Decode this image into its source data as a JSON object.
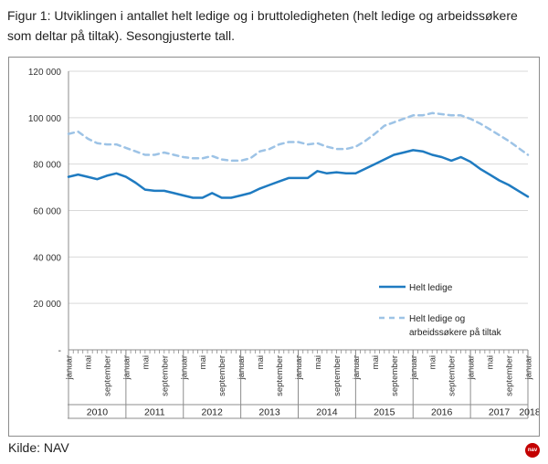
{
  "caption": "Figur 1: Utviklingen i antallet helt ledige og i bruttoledigheten (helt ledige og arbeidssøkere som deltar på tiltak). Sesongjusterte tall.",
  "source": "Kilde: NAV",
  "logo_text": "nav",
  "colors": {
    "solid": "#1f7bc1",
    "dashed": "#9dc3e6",
    "axis": "#8c8c8c",
    "grid": "#d9d9d9"
  },
  "chart_data": {
    "type": "line",
    "title": "",
    "xlabel": "",
    "ylabel": "",
    "ylim": [
      0,
      120000
    ],
    "y_ticks": [
      {
        "value": 120000,
        "label": "120 000"
      },
      {
        "value": 100000,
        "label": "100 000"
      },
      {
        "value": 80000,
        "label": "80 000"
      },
      {
        "value": 60000,
        "label": "60 000"
      },
      {
        "value": 40000,
        "label": "40 000"
      },
      {
        "value": 20000,
        "label": "20 000"
      },
      {
        "value": 0,
        "label": "-"
      }
    ],
    "grid": true,
    "legend_position": "lower-right",
    "x_range": [
      "2010-01",
      "2018-01"
    ],
    "month_labels": [
      "januar",
      "mai",
      "september"
    ],
    "years": [
      "2010",
      "2011",
      "2012",
      "2013",
      "2014",
      "2015",
      "2016",
      "2017",
      "2018"
    ],
    "series": [
      {
        "name": "Helt ledige",
        "style": "solid",
        "points": [
          [
            "2010-01",
            74500
          ],
          [
            "2010-03",
            75500
          ],
          [
            "2010-05",
            74500
          ],
          [
            "2010-07",
            73500
          ],
          [
            "2010-09",
            75000
          ],
          [
            "2010-11",
            76000
          ],
          [
            "2011-01",
            74500
          ],
          [
            "2011-03",
            72000
          ],
          [
            "2011-05",
            69000
          ],
          [
            "2011-07",
            68500
          ],
          [
            "2011-09",
            68500
          ],
          [
            "2011-11",
            67500
          ],
          [
            "2012-01",
            66500
          ],
          [
            "2012-03",
            65500
          ],
          [
            "2012-05",
            65500
          ],
          [
            "2012-07",
            67500
          ],
          [
            "2012-09",
            65500
          ],
          [
            "2012-11",
            65500
          ],
          [
            "2013-01",
            66500
          ],
          [
            "2013-03",
            67500
          ],
          [
            "2013-05",
            69500
          ],
          [
            "2013-07",
            71000
          ],
          [
            "2013-09",
            72500
          ],
          [
            "2013-11",
            74000
          ],
          [
            "2014-01",
            74000
          ],
          [
            "2014-03",
            74000
          ],
          [
            "2014-05",
            77000
          ],
          [
            "2014-07",
            76000
          ],
          [
            "2014-09",
            76500
          ],
          [
            "2014-11",
            76000
          ],
          [
            "2015-01",
            76000
          ],
          [
            "2015-03",
            78000
          ],
          [
            "2015-05",
            80000
          ],
          [
            "2015-07",
            82000
          ],
          [
            "2015-09",
            84000
          ],
          [
            "2015-11",
            85000
          ],
          [
            "2016-01",
            86000
          ],
          [
            "2016-03",
            85500
          ],
          [
            "2016-05",
            84000
          ],
          [
            "2016-07",
            83000
          ],
          [
            "2016-09",
            81500
          ],
          [
            "2016-11",
            83000
          ],
          [
            "2017-01",
            81000
          ],
          [
            "2017-03",
            78000
          ],
          [
            "2017-05",
            75500
          ],
          [
            "2017-07",
            73000
          ],
          [
            "2017-09",
            71000
          ],
          [
            "2017-11",
            68500
          ],
          [
            "2018-01",
            66000
          ]
        ]
      },
      {
        "name": "Helt ledige og arbeidssøkere på tiltak",
        "style": "dashed",
        "points": [
          [
            "2010-01",
            93000
          ],
          [
            "2010-03",
            94000
          ],
          [
            "2010-05",
            91000
          ],
          [
            "2010-07",
            89000
          ],
          [
            "2010-09",
            88500
          ],
          [
            "2010-11",
            88500
          ],
          [
            "2011-01",
            87000
          ],
          [
            "2011-03",
            85500
          ],
          [
            "2011-05",
            84000
          ],
          [
            "2011-07",
            84000
          ],
          [
            "2011-09",
            85000
          ],
          [
            "2011-11",
            84000
          ],
          [
            "2012-01",
            83000
          ],
          [
            "2012-03",
            82500
          ],
          [
            "2012-05",
            82500
          ],
          [
            "2012-07",
            83500
          ],
          [
            "2012-09",
            82000
          ],
          [
            "2012-11",
            81500
          ],
          [
            "2013-01",
            81500
          ],
          [
            "2013-03",
            82500
          ],
          [
            "2013-05",
            85500
          ],
          [
            "2013-07",
            86500
          ],
          [
            "2013-09",
            88500
          ],
          [
            "2013-11",
            89500
          ],
          [
            "2014-01",
            89500
          ],
          [
            "2014-03",
            88500
          ],
          [
            "2014-05",
            89000
          ],
          [
            "2014-07",
            87500
          ],
          [
            "2014-09",
            86500
          ],
          [
            "2014-11",
            86500
          ],
          [
            "2015-01",
            87500
          ],
          [
            "2015-03",
            90000
          ],
          [
            "2015-05",
            93000
          ],
          [
            "2015-07",
            96500
          ],
          [
            "2015-09",
            98000
          ],
          [
            "2015-11",
            99500
          ],
          [
            "2016-01",
            101000
          ],
          [
            "2016-03",
            101000
          ],
          [
            "2016-05",
            102000
          ],
          [
            "2016-07",
            101500
          ],
          [
            "2016-09",
            101000
          ],
          [
            "2016-11",
            101000
          ],
          [
            "2017-01",
            99500
          ],
          [
            "2017-03",
            97500
          ],
          [
            "2017-05",
            95000
          ],
          [
            "2017-07",
            92500
          ],
          [
            "2017-09",
            90000
          ],
          [
            "2017-11",
            87000
          ],
          [
            "2018-01",
            84000
          ]
        ]
      }
    ],
    "legend": [
      {
        "label_lines": [
          "Helt ledige"
        ],
        "style": "solid"
      },
      {
        "label_lines": [
          "Helt ledige og",
          "arbeidssøkere på tiltak"
        ],
        "style": "dashed"
      }
    ]
  }
}
